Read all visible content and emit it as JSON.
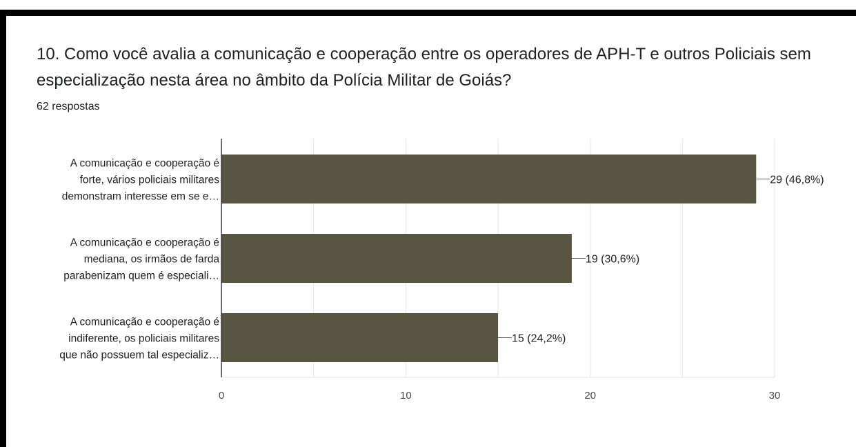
{
  "question": {
    "title": "10. Como você avalia a comunicação e cooperação entre os operadores de APH-T e outros Policiais sem especialização nesta área no âmbito da Polícia Militar de Goiás?",
    "response_count": "62 respostas"
  },
  "colors": {
    "bar": "#585640",
    "frame": "#000000",
    "grid": "#e6e6e6",
    "axis": "#3c3c3c"
  },
  "chart_data": {
    "type": "bar",
    "orientation": "horizontal",
    "title": "10. Como você avalia a comunicação e cooperação entre os operadores de APH-T e outros Policiais sem especialização nesta área no âmbito da Polícia Militar de Goiás?",
    "categories": [
      [
        "A comunicação e cooperação é",
        "forte, vários policiais militares",
        "demonstram interesse em se e…"
      ],
      [
        "A comunicação e cooperação é",
        "mediana, os irmãos de farda",
        "parabenizam quem é especiali…"
      ],
      [
        "A comunicação e cooperação é",
        "indiferente, os policiais militares",
        "que não possuem tal especializ…"
      ]
    ],
    "values": [
      29,
      19,
      15
    ],
    "data_labels": [
      "29 (46,8%)",
      "19 (30,6%)",
      "15 (24,2%)"
    ],
    "xlim": [
      0,
      30
    ],
    "xticks": [
      0,
      10,
      20,
      30
    ],
    "xtick_labels": [
      "0",
      "10",
      "20",
      "30"
    ],
    "grid": true,
    "legend": "none"
  }
}
